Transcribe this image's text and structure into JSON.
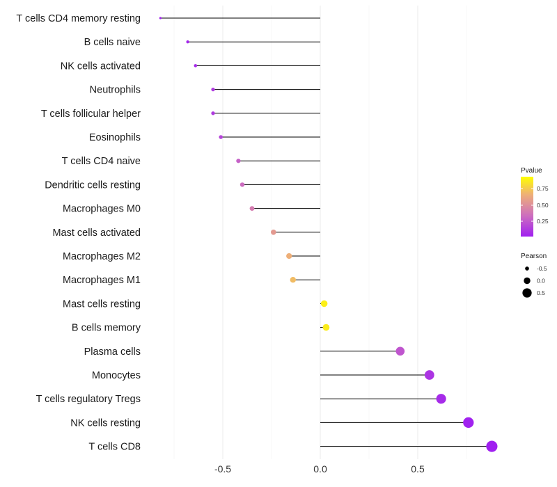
{
  "chart_data": {
    "type": "lollipop",
    "title": "",
    "xlabel": "",
    "ylabel": "",
    "xlim": [
      -0.9,
      0.95
    ],
    "x_ticks": [
      {
        "value": -0.5,
        "label": "-0.5"
      },
      {
        "value": 0.0,
        "label": "0.0"
      },
      {
        "value": 0.5,
        "label": "0.5"
      }
    ],
    "grid": true,
    "categories": [
      "T cells CD4 memory resting",
      "B cells naive",
      "NK cells activated",
      "Neutrophils",
      "T cells follicular helper",
      "Eosinophils",
      "T cells CD4 naive",
      "Dendritic cells resting",
      "Macrophages M0",
      "Mast cells activated",
      "Macrophages M2",
      "Macrophages M1",
      "Mast cells resting",
      "B cells memory",
      "Plasma cells",
      "Monocytes",
      "T cells regulatory  Tregs",
      "NK cells resting",
      "T cells CD8"
    ],
    "pearson": [
      -0.82,
      -0.68,
      -0.64,
      -0.55,
      -0.55,
      -0.51,
      -0.42,
      -0.4,
      -0.35,
      -0.24,
      -0.16,
      -0.14,
      0.02,
      0.03,
      0.41,
      0.56,
      0.62,
      0.76,
      0.88
    ],
    "pvalue": [
      0.01,
      0.03,
      0.05,
      0.12,
      0.12,
      0.16,
      0.29,
      0.34,
      0.42,
      0.58,
      0.7,
      0.75,
      0.94,
      0.93,
      0.24,
      0.09,
      0.05,
      0.01,
      0.001
    ],
    "color_legend": {
      "title": "Pvalue",
      "ticks": [
        "0.75",
        "0.50",
        "0.25"
      ],
      "low_color": "#a020f0",
      "high_color": "#ffff00"
    },
    "size_legend": {
      "title": "Pearson",
      "entries": [
        {
          "label": "-0.5",
          "value": -0.5
        },
        {
          "label": "0.0",
          "value": 0.0
        },
        {
          "label": "0.5",
          "value": 0.5
        }
      ]
    }
  }
}
